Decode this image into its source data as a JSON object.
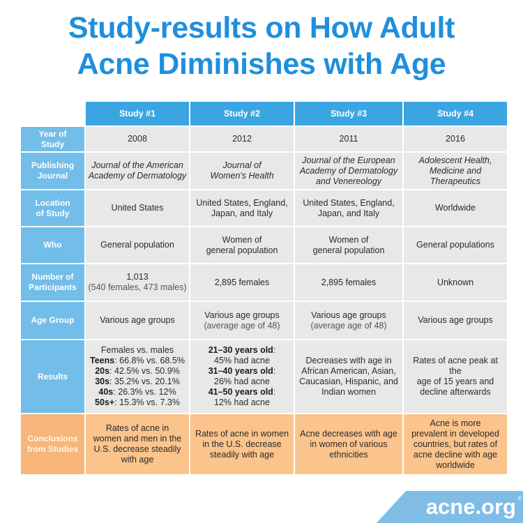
{
  "title": {
    "line1": "Study-results on How Adult",
    "line2": "Acne Diminishes with Age"
  },
  "table": {
    "columns": [
      "Study #1",
      "Study #2",
      "Study #3",
      "Study #4"
    ],
    "rows": {
      "year": {
        "label_1": "Year of",
        "label_2": "Study",
        "values": [
          "2008",
          "2012",
          "2011",
          "2016"
        ]
      },
      "journal": {
        "label_1": "Publishing",
        "label_2": "Journal",
        "values": [
          [
            "Journal of the American",
            "Academy of Dermatology"
          ],
          [
            "Journal of",
            "Women's Health"
          ],
          [
            "Journal of the European",
            "Academy of Dermatology",
            "and Venereology"
          ],
          [
            "Adolescent Health,",
            "Medicine and",
            "Therapeutics"
          ]
        ]
      },
      "location": {
        "label_1": "Location",
        "label_2": "of Study",
        "values": [
          [
            "United States"
          ],
          [
            "United States, England,",
            "Japan, and Italy"
          ],
          [
            "United States, England,",
            "Japan, and Italy"
          ],
          [
            "Worldwide"
          ]
        ]
      },
      "who": {
        "label": "Who",
        "values": [
          [
            "General population"
          ],
          [
            "Women of",
            "general population"
          ],
          [
            "Women of",
            "general population"
          ],
          [
            "General populations"
          ]
        ]
      },
      "participants": {
        "label_1": "Number of",
        "label_2": "Participants",
        "values": [
          {
            "main": "1,013",
            "sub": "(540 females, 473 males)"
          },
          {
            "main": "2,895 females"
          },
          {
            "main": "2,895 females"
          },
          {
            "main": "Unknown"
          }
        ]
      },
      "age_group": {
        "label": "Age Group",
        "values": [
          {
            "main": "Various age groups"
          },
          {
            "main": "Various age groups",
            "sub": "(average age of 48)"
          },
          {
            "main": "Various age groups",
            "sub": "(average age of 48)"
          },
          {
            "main": "Various age groups"
          }
        ]
      },
      "results": {
        "label": "Results",
        "study1": {
          "heading": "Females vs. males",
          "items": [
            {
              "bold": "Teens",
              "text": ": 66.8% vs. 68.5%"
            },
            {
              "bold": "20s",
              "text": ": 42.5% vs. 50.9%"
            },
            {
              "bold": "30s",
              "text": ": 35.2% vs. 20.1%"
            },
            {
              "bold": "40s",
              "text": ": 26.3% vs. 12%"
            },
            {
              "bold": "50s+",
              "text": ": 15.3% vs. 7.3%"
            }
          ]
        },
        "study2": {
          "items": [
            {
              "bold": "21–30 years old",
              "text": ":",
              "line2": "45% had acne"
            },
            {
              "bold": "31–40 years old",
              "text": ":",
              "line2": "26% had acne"
            },
            {
              "bold": "41–50 years old",
              "text": ":",
              "line2": "12% had acne"
            }
          ]
        },
        "study3": [
          "Decreases with age in",
          "African American, Asian,",
          "Caucasian, Hispanic, and",
          "Indian women"
        ],
        "study4": [
          "Rates of acne peak at the",
          "age of 15 years and",
          "decline afterwards"
        ]
      },
      "conclusions": {
        "label_1": "Conclusions",
        "label_2": "from Studies",
        "values": [
          [
            "Rates of acne in",
            "women and men in the",
            "U.S. decrease steadily",
            "with age"
          ],
          [
            "Rates of acne in women",
            "in the U.S. decrease",
            "steadily with age"
          ],
          [
            "Acne decreases with age",
            "in women of various",
            "ethnicities"
          ],
          [
            "Acne is more",
            "prevalent in developed",
            "countries, but rates of",
            "acne decline with age",
            "worldwide"
          ]
        ]
      }
    }
  },
  "logo": {
    "text": "acne.org",
    "reg": "®"
  },
  "colors": {
    "title": "#1e8fdc",
    "header": "#3aa5e0",
    "row_label": "#72bde9",
    "data_cell": "#e8e8e8",
    "conclusion_label": "#f7b57a",
    "conclusion_cell": "#fbc48c",
    "logo_bg": "#7fbde6"
  }
}
